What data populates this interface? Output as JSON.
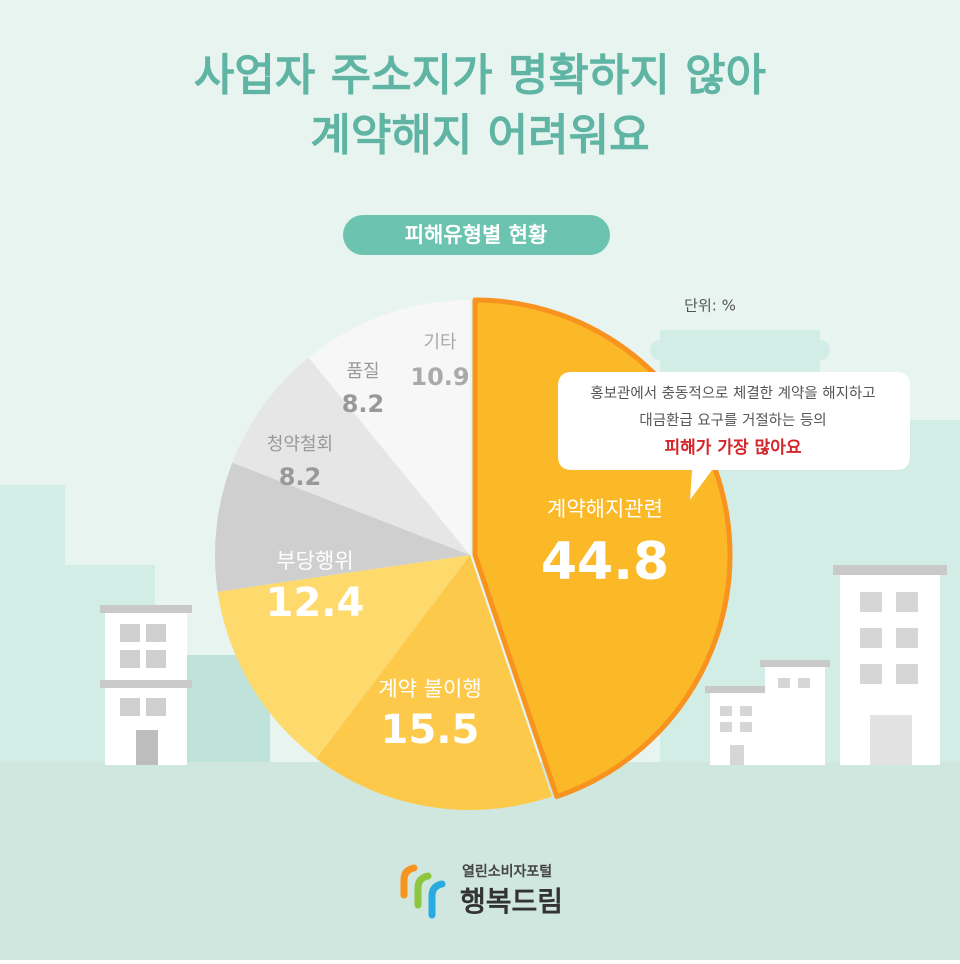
{
  "header": {
    "title_lines": [
      "사업자 주소지가 명확하지 않아",
      "계약해지 어려워요"
    ]
  },
  "chart_data": {
    "type": "pie",
    "subtitle": "피해유형별 현황",
    "unit": "단위: %",
    "categories": [
      "계약해지관련",
      "계약 불이행",
      "부당행위",
      "청약철회",
      "품질",
      "기타"
    ],
    "values": [
      44.8,
      15.5,
      12.4,
      8.2,
      8.2,
      10.9
    ],
    "colors": [
      "#fbb827",
      "#fdc94b",
      "#fed96c",
      "#cfcfcf",
      "#e6e6e6",
      "#f7f7f7"
    ]
  },
  "callout": {
    "lines": [
      "홍보관에서 충동적으로 체결한 계약을 해지하고",
      "대금환급 요구를 거절하는 등의",
      "피해가 가장 많아요"
    ]
  },
  "logo": {
    "small": "열린소비자포털",
    "big": "행복드림"
  }
}
